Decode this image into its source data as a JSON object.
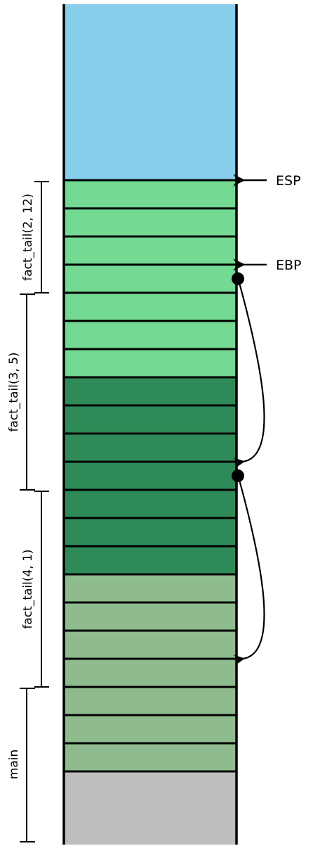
{
  "colors": {
    "free_space": "#87ceeb",
    "frame_fact_tail_2_12": "#73d993",
    "frame_fact_tail_3_5": "#2e8b57",
    "frame_fact_tail_4_1": "#8fbc8f",
    "main_bottom": "#bebebe",
    "stroke": "#000000"
  },
  "registers": {
    "esp": "ESP",
    "ebp": "EBP"
  },
  "frames": [
    {
      "id": "fact_tail_2_12",
      "label": "fact_tail(2, 12)",
      "slots": 4
    },
    {
      "id": "fact_tail_3_5",
      "label": "fact_tail(3, 5)",
      "slots": 7
    },
    {
      "id": "fact_tail_4_1",
      "label": "fact_tail(4, 1)",
      "slots": 7
    },
    {
      "id": "main",
      "label": "main",
      "slots": 3
    }
  ]
}
